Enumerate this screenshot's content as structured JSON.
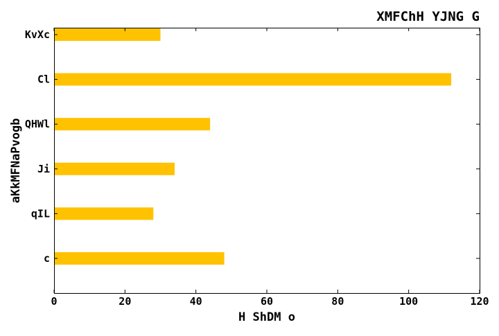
{
  "chart_data": {
    "type": "bar",
    "orientation": "horizontal",
    "title": "XMFChH YJNG G",
    "xlabel": "H ShDM o",
    "ylabel": "aKkMFNaPvogb",
    "categories": [
      "KvXc",
      "Cl",
      "QHWl",
      "Ji",
      "qIL",
      "c"
    ],
    "values": [
      30,
      112,
      44,
      34,
      28,
      48
    ],
    "xlim": [
      0,
      120
    ],
    "xticks": [
      0,
      20,
      40,
      60,
      80,
      100,
      120
    ],
    "grid": false,
    "legend": "none",
    "bar_color": "#ffc200",
    "axis_color": "#000000"
  }
}
